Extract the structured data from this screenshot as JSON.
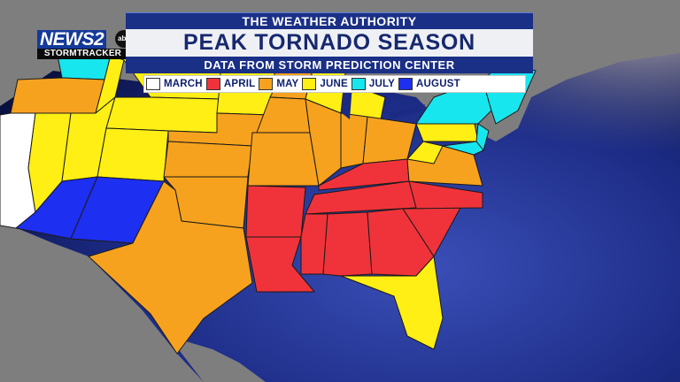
{
  "header": {
    "supertitle": "THE WEATHER AUTHORITY",
    "title": "PEAK TORNADO SEASON",
    "subtitle": "DATA FROM STORM PREDICTION CENTER"
  },
  "logo": {
    "news": "NEWS",
    "number": "2",
    "network": "abc",
    "tagline": "STORMTRACKER"
  },
  "legend": [
    {
      "label": "MARCH",
      "color": "#ffffff"
    },
    {
      "label": "APRIL",
      "color": "#f0333a"
    },
    {
      "label": "MAY",
      "color": "#f7a21e"
    },
    {
      "label": "JUNE",
      "color": "#ffef14"
    },
    {
      "label": "JULY",
      "color": "#18e6ee"
    },
    {
      "label": "AUGUST",
      "color": "#1d2ff0"
    }
  ],
  "colors": {
    "march": "#ffffff",
    "april": "#f0333a",
    "may": "#f7a21e",
    "june": "#ffef14",
    "july": "#18e6ee",
    "august": "#1d2ff0",
    "ocean": "#1b2a83",
    "land": "#7f7f7f",
    "border": "#1a1a1a"
  },
  "states_peak_month": {
    "march": [
      "CA"
    ],
    "april": [
      "KY",
      "TN",
      "AR",
      "LA",
      "MS",
      "AL",
      "GA",
      "SC",
      "NC"
    ],
    "may": [
      "OR",
      "NE",
      "KS",
      "OK",
      "TX",
      "MN",
      "IA",
      "MO",
      "IL",
      "IN",
      "OH",
      "VA"
    ],
    "june": [
      "ID",
      "NV",
      "UT",
      "MT",
      "WY",
      "CO",
      "SD",
      "ND",
      "WI",
      "MI",
      "WV",
      "PA",
      "FL"
    ],
    "july": [
      "WA",
      "NY",
      "NJ",
      "DE",
      "MD",
      "CT",
      "RI",
      "MA",
      "NH",
      "VT",
      "ME"
    ],
    "august": [
      "AZ",
      "NM"
    ]
  }
}
